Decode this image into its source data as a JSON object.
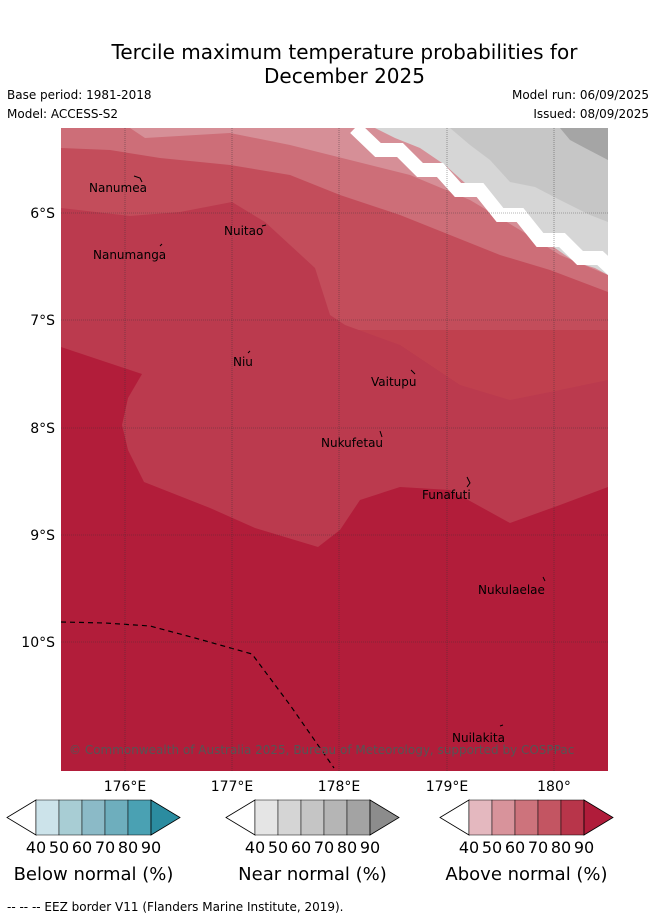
{
  "title_line1": "Tercile maximum temperature probabilities for",
  "title_line2": "December 2025",
  "base_period": "Base period: 1981-2018",
  "model": "Model: ACCESS-S2",
  "model_run": "Model run: 06/09/2025",
  "issued": "Issued: 08/09/2025",
  "lat_ticks": [
    "6°S",
    "7°S",
    "8°S",
    "9°S",
    "10°S"
  ],
  "lon_ticks": [
    "176°E",
    "177°E",
    "178°E",
    "179°E",
    "180°"
  ],
  "places": [
    "Nanumea",
    "Nuitao",
    "Nanumanga",
    "Niu",
    "Vaitupu",
    "Nukufetau",
    "Funafuti",
    "Nukulaelae",
    "Nuilakita"
  ],
  "credit": "© Commonwealth of Australia 2025, Bureau of Meteorology, supported by COSPPac",
  "colorbars": [
    {
      "name": "Below normal (%)",
      "ticks": [
        "40",
        "50",
        "60",
        "70",
        "80",
        "90"
      ],
      "colors": [
        "#ffffff",
        "#cce3ea",
        "#a8cdd4",
        "#8bbac7",
        "#6eaebd",
        "#4aa1b3",
        "#2b8ca0"
      ]
    },
    {
      "name": "Near normal (%)",
      "ticks": [
        "40",
        "50",
        "60",
        "70",
        "80",
        "90"
      ],
      "colors": [
        "#ffffff",
        "#e5e5e5",
        "#d5d5d5",
        "#c5c5c5",
        "#b5b5b5",
        "#a3a3a3",
        "#8c8c8c"
      ]
    },
    {
      "name": "Above normal (%)",
      "ticks": [
        "40",
        "50",
        "60",
        "70",
        "80",
        "90"
      ],
      "colors": [
        "#ffffff",
        "#e4b8bf",
        "#d8939b",
        "#cd737c",
        "#c35562",
        "#b8354a",
        "#b01c3a"
      ]
    }
  ],
  "footer": "--  --  -- EEZ border V11 (Flanders Marine Institute, 2019)."
}
